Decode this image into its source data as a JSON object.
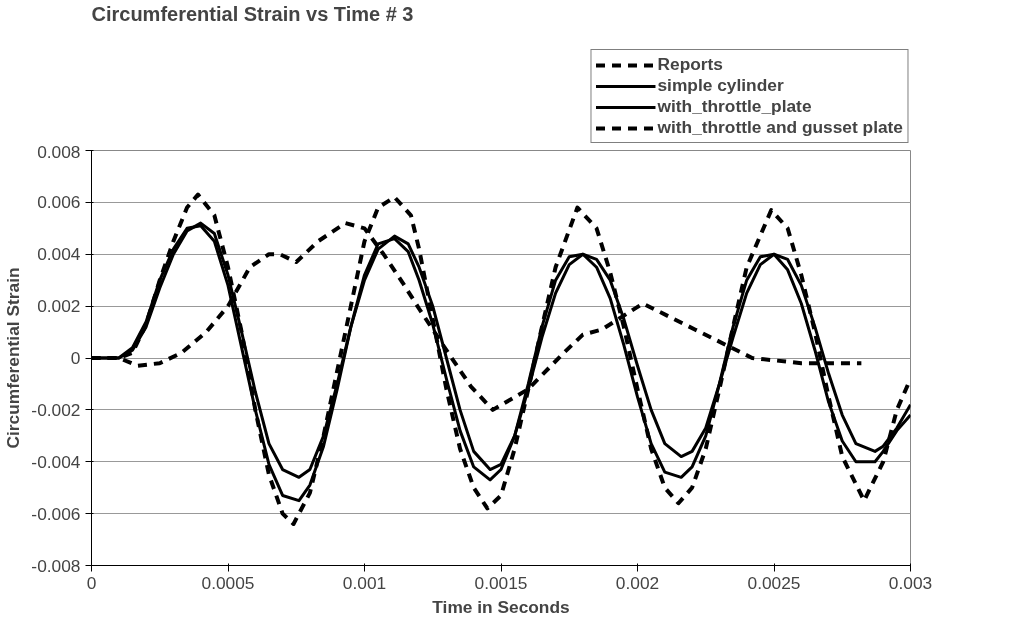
{
  "chart_data": {
    "type": "line",
    "title": "Circumferential Strain vs Time # 3",
    "xlabel": "Time in Seconds",
    "ylabel": "Circumferential Strain",
    "xlim": [
      0,
      0.003
    ],
    "xticks": [
      0,
      0.0005,
      0.001,
      0.0015,
      0.002,
      0.0025,
      0.003
    ],
    "ylim": [
      -0.008,
      0.008
    ],
    "yticks": [
      -0.008,
      -0.006,
      -0.004,
      -0.002,
      0,
      0.002,
      0.004,
      0.006,
      0.008
    ],
    "grid": "y",
    "legend": "top right",
    "marker": "none",
    "series": [
      {
        "name": "Reports",
        "color": "#000000",
        "line_style": "dashed",
        "x": [
          0,
          0.0001,
          0.00017,
          0.00025,
          0.00033,
          0.00042,
          0.0005,
          0.00058,
          0.00065,
          0.00069,
          0.00075,
          0.00083,
          0.00093,
          0.001,
          0.00107,
          0.00114,
          0.0012,
          0.0013,
          0.00139,
          0.00147,
          0.0016,
          0.00173,
          0.0018,
          0.00187,
          0.00202,
          0.00221,
          0.00242,
          0.0026,
          0.00282
        ],
        "values": [
          0,
          0,
          -0.0003,
          -0.0002,
          0.0002,
          0.001,
          0.002,
          0.0035,
          0.004,
          0.004,
          0.0037,
          0.0045,
          0.0052,
          0.005,
          0.004,
          0.0029,
          0.0019,
          0.0003,
          -0.0011,
          -0.002,
          -0.0012,
          0.0002,
          0.0009,
          0.0011,
          0.0021,
          0.0011,
          0,
          -0.0002,
          -0.0002
        ]
      },
      {
        "name": "simple cylinder",
        "color": "#000000",
        "line_style": "solid",
        "x": [
          0,
          0.0001,
          0.00015,
          0.0002,
          0.00025,
          0.0003,
          0.00035,
          0.0004,
          0.00045,
          0.0005,
          0.00055,
          0.0006,
          0.00065,
          0.0007,
          0.00076,
          0.0008,
          0.00085,
          0.0009,
          0.00095,
          0.001,
          0.00105,
          0.00111,
          0.00116,
          0.0012,
          0.00125,
          0.0013,
          0.00135,
          0.0014,
          0.00146,
          0.0015,
          0.00155,
          0.0016,
          0.00165,
          0.0017,
          0.00175,
          0.0018,
          0.00185,
          0.0019,
          0.00195,
          0.002,
          0.00205,
          0.0021,
          0.00216,
          0.0022,
          0.00225,
          0.0023,
          0.00235,
          0.0024,
          0.00245,
          0.0025,
          0.00255,
          0.0026,
          0.00265,
          0.0027,
          0.00275,
          0.0028,
          0.00287,
          0.0029,
          0.00295,
          0.003
        ],
        "values": [
          0,
          0,
          0.0003,
          0.0012,
          0.0027,
          0.004,
          0.0049,
          0.0052,
          0.0048,
          0.0032,
          0.001,
          -0.0013,
          -0.0033,
          -0.0043,
          -0.0046,
          -0.0043,
          -0.003,
          -0.001,
          0.0012,
          0.003,
          0.0042,
          0.0047,
          0.0044,
          0.0035,
          0.002,
          0.0,
          -0.002,
          -0.0036,
          -0.0043,
          -0.0041,
          -0.003,
          -0.0012,
          0.0008,
          0.0025,
          0.0036,
          0.004,
          0.0038,
          0.003,
          0.0015,
          -0.0003,
          -0.002,
          -0.0033,
          -0.0038,
          -0.0036,
          -0.0027,
          -0.001,
          0.0008,
          0.0025,
          0.0036,
          0.004,
          0.0038,
          0.0028,
          0.0012,
          -0.0006,
          -0.0022,
          -0.0033,
          -0.0036,
          -0.0034,
          -0.0027,
          -0.0018
        ]
      },
      {
        "name": "with_throttle_plate",
        "color": "#000000",
        "line_style": "solid",
        "x": [
          0,
          0.0001,
          0.00015,
          0.0002,
          0.00025,
          0.0003,
          0.00035,
          0.0004,
          0.00045,
          0.0005,
          0.00055,
          0.0006,
          0.00065,
          0.0007,
          0.00076,
          0.0008,
          0.00085,
          0.0009,
          0.00095,
          0.001,
          0.00105,
          0.00111,
          0.00116,
          0.0012,
          0.00125,
          0.0013,
          0.00135,
          0.0014,
          0.00146,
          0.0015,
          0.00155,
          0.0016,
          0.00165,
          0.0017,
          0.00175,
          0.0018,
          0.00185,
          0.0019,
          0.00195,
          0.002,
          0.00205,
          0.0021,
          0.00216,
          0.0022,
          0.00225,
          0.0023,
          0.00235,
          0.0024,
          0.00245,
          0.0025,
          0.00255,
          0.0026,
          0.00265,
          0.0027,
          0.00275,
          0.0028,
          0.00287,
          0.0029,
          0.00295,
          0.003
        ],
        "values": [
          0,
          0,
          0.0004,
          0.0014,
          0.003,
          0.0042,
          0.005,
          0.0051,
          0.0045,
          0.0028,
          0.0004,
          -0.002,
          -0.0041,
          -0.0053,
          -0.0055,
          -0.0049,
          -0.0034,
          -0.0012,
          0.0012,
          0.0032,
          0.0044,
          0.0046,
          0.0041,
          0.003,
          0.0013,
          -0.0008,
          -0.0028,
          -0.0042,
          -0.0047,
          -0.0043,
          -0.003,
          -0.001,
          0.0012,
          0.003,
          0.0039,
          0.004,
          0.0035,
          0.0023,
          0.0005,
          -0.0015,
          -0.0033,
          -0.0044,
          -0.0046,
          -0.0042,
          -0.003,
          -0.001,
          0.0012,
          0.003,
          0.0039,
          0.004,
          0.0034,
          0.0021,
          0.0003,
          -0.0017,
          -0.0032,
          -0.004,
          -0.004,
          -0.0036,
          -0.0028,
          -0.0022
        ]
      },
      {
        "name": "with_throttle and gusset plate",
        "color": "#000000",
        "line_style": "dashed",
        "x": [
          0,
          0.0001,
          0.00015,
          0.0002,
          0.00025,
          0.0003,
          0.00035,
          0.00039,
          0.00045,
          0.0005,
          0.00055,
          0.0006,
          0.00065,
          0.0007,
          0.00074,
          0.0008,
          0.00085,
          0.0009,
          0.00095,
          0.001,
          0.00105,
          0.00111,
          0.00117,
          0.0012,
          0.00125,
          0.0013,
          0.00135,
          0.0014,
          0.00145,
          0.0015,
          0.00155,
          0.0016,
          0.00165,
          0.0017,
          0.00178,
          0.00185,
          0.0019,
          0.00195,
          0.002,
          0.00205,
          0.0021,
          0.00215,
          0.0022,
          0.00225,
          0.0023,
          0.00235,
          0.0024,
          0.00249,
          0.00255,
          0.0026,
          0.00265,
          0.0027,
          0.00275,
          0.00283,
          0.0029,
          0.00295,
          0.003
        ],
        "values": [
          0,
          0,
          0.0002,
          0.0013,
          0.003,
          0.0045,
          0.0058,
          0.0063,
          0.0055,
          0.0035,
          0.001,
          -0.002,
          -0.0045,
          -0.006,
          -0.0064,
          -0.0052,
          -0.003,
          -0.0005,
          0.002,
          0.0045,
          0.0058,
          0.0062,
          0.0055,
          0.0042,
          0.0015,
          -0.0012,
          -0.0035,
          -0.005,
          -0.0058,
          -0.0053,
          -0.0035,
          -0.0012,
          0.0012,
          0.0035,
          0.0058,
          0.005,
          0.0033,
          0.0012,
          -0.0012,
          -0.0035,
          -0.005,
          -0.0056,
          -0.005,
          -0.0035,
          -0.0012,
          0.0012,
          0.0035,
          0.0057,
          0.005,
          0.0032,
          0.001,
          -0.0015,
          -0.0038,
          -0.0055,
          -0.004,
          -0.002,
          -0.0008
        ]
      }
    ]
  }
}
